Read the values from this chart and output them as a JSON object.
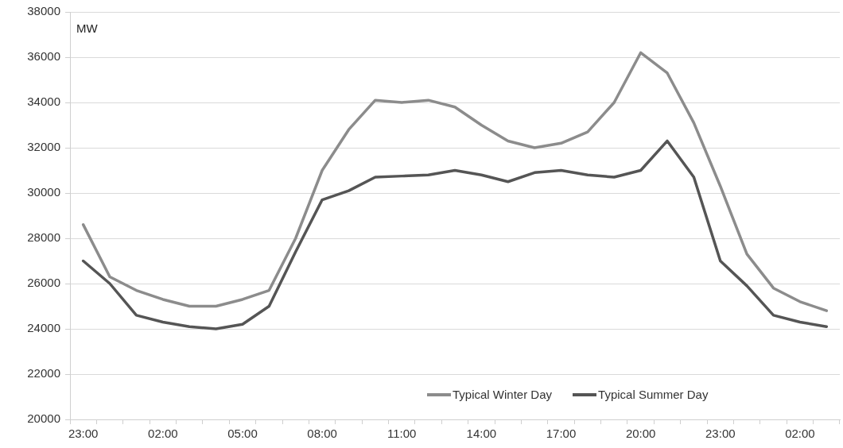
{
  "chart_data": {
    "type": "line",
    "categories": [
      "23:00",
      null,
      null,
      "02:00",
      null,
      null,
      "05:00",
      null,
      null,
      "08:00",
      null,
      null,
      "11:00",
      null,
      null,
      "14:00",
      null,
      null,
      "17:00",
      null,
      null,
      "20:00",
      null,
      null,
      "23:00",
      null,
      null,
      "02:00",
      null
    ],
    "series": [
      {
        "name": "Typical Winter Day",
        "color": "#8c8c8c",
        "values": [
          28600,
          26300,
          25700,
          25300,
          25000,
          25000,
          25300,
          25700,
          28000,
          31000,
          32800,
          34100,
          34000,
          34100,
          33800,
          33000,
          32300,
          32000,
          32200,
          32700,
          34000,
          36200,
          35300,
          33100,
          30300,
          27300,
          25800,
          25200,
          24800
        ]
      },
      {
        "name": "Typical Summer Day",
        "color": "#555555",
        "values": [
          27000,
          26000,
          24600,
          24300,
          24100,
          24000,
          24200,
          25000,
          27400,
          29700,
          30100,
          30700,
          30750,
          30800,
          31000,
          30800,
          30500,
          30900,
          31000,
          30800,
          30700,
          31000,
          32300,
          30700,
          27000,
          25900,
          24600,
          24300,
          24100
        ]
      }
    ],
    "ylim": [
      20000,
      38000
    ],
    "yticks": [
      20000,
      22000,
      24000,
      26000,
      28000,
      30000,
      32000,
      34000,
      36000,
      38000
    ],
    "annotations": [
      "MW"
    ],
    "grid": "y",
    "legend": "bottom",
    "marker": "none",
    "line_style": "solid"
  }
}
